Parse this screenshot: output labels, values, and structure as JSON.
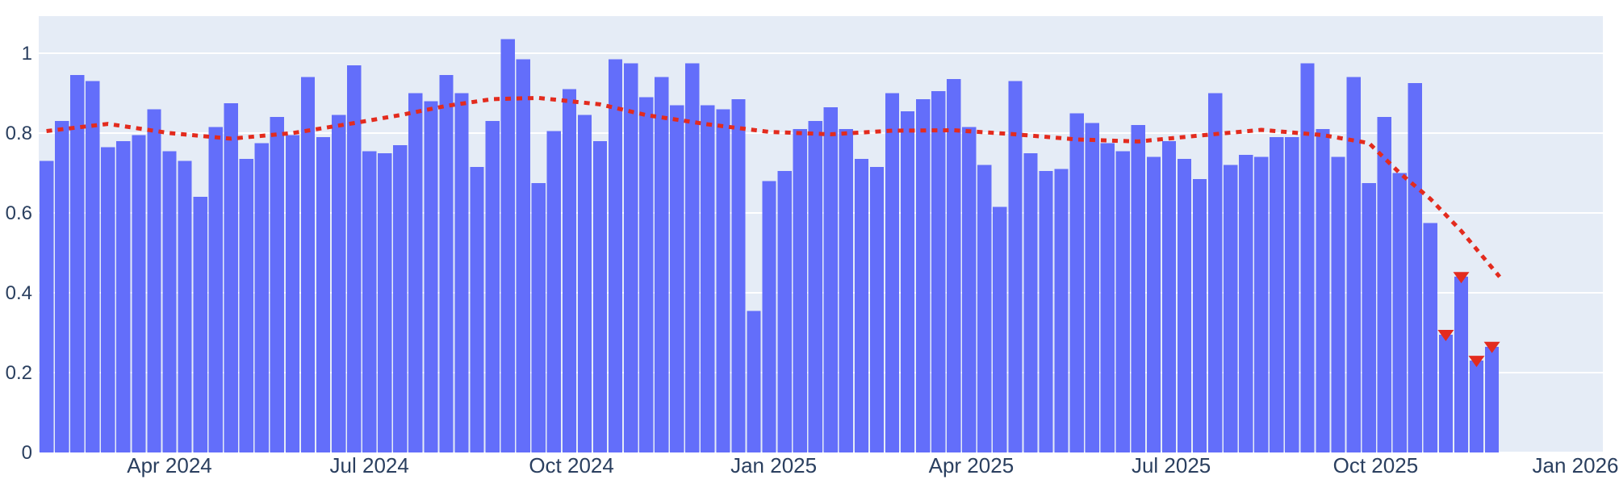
{
  "chart_data": {
    "type": "bar",
    "title": "",
    "xlabel": "",
    "ylabel": "",
    "legend": "none",
    "grid": "on",
    "x_axis": {
      "kind": "date",
      "tick_labels": [
        "Apr 2024",
        "Jul 2024",
        "Oct 2024",
        "Jan 2025",
        "Apr 2025",
        "Jul 2025",
        "Oct 2025",
        "Jan 2026"
      ],
      "tick_week_positions": [
        8.0,
        21.0,
        34.14,
        47.29,
        60.14,
        73.14,
        86.43,
        99.43
      ]
    },
    "y_axis": {
      "tick_labels": [
        "0",
        "0.2",
        "0.4",
        "0.6",
        "0.8",
        "1"
      ],
      "tick_values": [
        0,
        0.2,
        0.4,
        0.6,
        0.8,
        1
      ],
      "range": [
        0,
        1.093
      ]
    },
    "series": [
      {
        "name": "weekly-values",
        "type": "bar",
        "color": "#636efa",
        "values": [
          0.73,
          0.83,
          0.945,
          0.93,
          0.765,
          0.78,
          0.795,
          0.86,
          0.755,
          0.73,
          0.64,
          0.815,
          0.875,
          0.735,
          0.775,
          0.84,
          0.795,
          0.94,
          0.79,
          0.845,
          0.97,
          0.755,
          0.75,
          0.77,
          0.9,
          0.88,
          0.945,
          0.9,
          0.715,
          0.83,
          1.035,
          0.985,
          0.675,
          0.805,
          0.91,
          0.845,
          0.78,
          0.985,
          0.975,
          0.89,
          0.94,
          0.87,
          0.975,
          0.87,
          0.86,
          0.885,
          0.355,
          0.68,
          0.705,
          0.81,
          0.83,
          0.865,
          0.81,
          0.735,
          0.715,
          0.9,
          0.855,
          0.885,
          0.905,
          0.935,
          0.815,
          0.72,
          0.615,
          0.93,
          0.75,
          0.705,
          0.71,
          0.85,
          0.825,
          0.775,
          0.755,
          0.82,
          0.74,
          0.78,
          0.735,
          0.685,
          0.9,
          0.72,
          0.745,
          0.74,
          0.79,
          0.79,
          0.975,
          0.81,
          0.74,
          0.94,
          0.675,
          0.84,
          0.7,
          0.925,
          0.575,
          0.295,
          0.44,
          0.23,
          0.265
        ]
      },
      {
        "name": "trend-line",
        "type": "line",
        "style": "dashed",
        "color": "#e32b1e",
        "points": [
          [
            0,
            0.805
          ],
          [
            4,
            0.823
          ],
          [
            8,
            0.8
          ],
          [
            12,
            0.786
          ],
          [
            16,
            0.8
          ],
          [
            20,
            0.825
          ],
          [
            23,
            0.845
          ],
          [
            26,
            0.868
          ],
          [
            29,
            0.885
          ],
          [
            32,
            0.888
          ],
          [
            36,
            0.872
          ],
          [
            39,
            0.845
          ],
          [
            43,
            0.822
          ],
          [
            47,
            0.803
          ],
          [
            51,
            0.797
          ],
          [
            55,
            0.806
          ],
          [
            59,
            0.807
          ],
          [
            63,
            0.797
          ],
          [
            67,
            0.784
          ],
          [
            71,
            0.779
          ],
          [
            75,
            0.794
          ],
          [
            79,
            0.808
          ],
          [
            83,
            0.795
          ],
          [
            86,
            0.775
          ],
          [
            88,
            0.7
          ],
          [
            90,
            0.635
          ],
          [
            92,
            0.555
          ],
          [
            94.5,
            0.44
          ]
        ]
      },
      {
        "name": "anomaly-markers",
        "type": "scatter",
        "marker": "triangle-down",
        "color": "#e32b1e",
        "indices": [
          91,
          92,
          93,
          94
        ],
        "values": [
          0.295,
          0.44,
          0.23,
          0.265
        ]
      }
    ],
    "colors": {
      "paper_background": "#ffffff",
      "plot_background": "#e5ecf6",
      "gridline": "#ffffff",
      "bar": "#636efa",
      "trend": "#e32b1e",
      "marker": "#e32b1e",
      "tick_text": "#2a3f5f"
    }
  }
}
